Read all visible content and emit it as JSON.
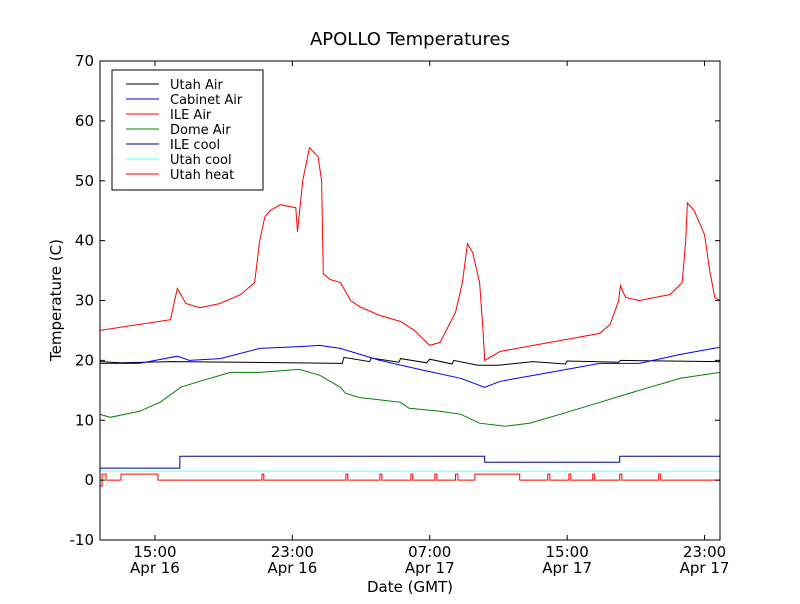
{
  "chart_data": {
    "type": "line",
    "title": "APOLLO Temperatures",
    "xlabel": "Date (GMT)",
    "ylabel": "Temperature (C)",
    "x_units": "hours since Apr 16 00:00 GMT",
    "xlim": [
      11.8,
      47.9
    ],
    "ylim": [
      -10,
      70
    ],
    "yticks": [
      -10,
      0,
      10,
      20,
      30,
      40,
      50,
      60,
      70
    ],
    "xticks": [
      {
        "x": 15,
        "time": "15:00",
        "date": "Apr 16"
      },
      {
        "x": 23,
        "time": "23:00",
        "date": "Apr 16"
      },
      {
        "x": 31,
        "time": "07:00",
        "date": "Apr 17"
      },
      {
        "x": 39,
        "time": "15:00",
        "date": "Apr 17"
      },
      {
        "x": 47,
        "time": "23:00",
        "date": "Apr 17"
      }
    ],
    "grid": false,
    "legend_position": "top-left",
    "series": [
      {
        "name": "Utah Air",
        "color": "#000000",
        "points": [
          [
            11.8,
            19.8
          ],
          [
            13,
            19.6
          ],
          [
            16,
            19.8
          ],
          [
            20,
            19.7
          ],
          [
            25.9,
            19.5
          ],
          [
            26,
            20.5
          ],
          [
            27.5,
            19.8
          ],
          [
            27.6,
            20.4
          ],
          [
            29.2,
            19.7
          ],
          [
            29.3,
            20.3
          ],
          [
            30.8,
            19.6
          ],
          [
            31,
            20.2
          ],
          [
            32.3,
            19.4
          ],
          [
            32.4,
            20
          ],
          [
            33.8,
            19.2
          ],
          [
            35,
            19.2
          ],
          [
            37,
            19.8
          ],
          [
            38.9,
            19.4
          ],
          [
            39,
            19.9
          ],
          [
            42,
            19.7
          ],
          [
            42.1,
            20
          ],
          [
            47.9,
            19.8
          ]
        ]
      },
      {
        "name": "Cabinet Air",
        "color": "#0000ff",
        "points": [
          [
            11.8,
            19.5
          ],
          [
            14.1,
            19.5
          ],
          [
            16.3,
            20.7
          ],
          [
            17.0,
            20
          ],
          [
            18.8,
            20.3
          ],
          [
            21.1,
            22
          ],
          [
            23.4,
            22.3
          ],
          [
            24.6,
            22.5
          ],
          [
            25.8,
            22
          ],
          [
            28.1,
            20
          ],
          [
            30.4,
            18.5
          ],
          [
            32.8,
            17
          ],
          [
            34.2,
            15.5
          ],
          [
            35.1,
            16.5
          ],
          [
            38.0,
            18
          ],
          [
            40.9,
            19.5
          ],
          [
            43.2,
            19.5
          ],
          [
            45.6,
            21
          ],
          [
            47.9,
            22.2
          ]
        ]
      },
      {
        "name": "ILE Air",
        "color": "#ff0000",
        "points": [
          [
            11.8,
            25
          ],
          [
            15.9,
            26.8
          ],
          [
            16.3,
            32
          ],
          [
            16.8,
            29.5
          ],
          [
            17.6,
            28.8
          ],
          [
            18.8,
            29.5
          ],
          [
            20.0,
            31
          ],
          [
            20.8,
            33
          ],
          [
            21.1,
            40
          ],
          [
            21.4,
            44
          ],
          [
            21.7,
            45
          ],
          [
            22.3,
            46
          ],
          [
            23.2,
            45.5
          ],
          [
            23.3,
            41.5
          ],
          [
            23.6,
            50
          ],
          [
            24.0,
            55.5
          ],
          [
            24.5,
            54
          ],
          [
            24.7,
            50
          ],
          [
            24.8,
            34.5
          ],
          [
            25.2,
            33.5
          ],
          [
            25.8,
            33
          ],
          [
            26.4,
            30
          ],
          [
            26.9,
            29
          ],
          [
            28.1,
            27.5
          ],
          [
            29.3,
            26.5
          ],
          [
            30.1,
            25
          ],
          [
            31.0,
            22.5
          ],
          [
            31.6,
            23
          ],
          [
            32.5,
            28
          ],
          [
            32.9,
            33
          ],
          [
            33.2,
            39.5
          ],
          [
            33.5,
            38
          ],
          [
            33.9,
            33
          ],
          [
            34.1,
            25
          ],
          [
            34.2,
            20
          ],
          [
            35.1,
            21.5
          ],
          [
            38.0,
            23
          ],
          [
            40.9,
            24.5
          ],
          [
            41.5,
            26
          ],
          [
            42.0,
            30
          ],
          [
            42.1,
            32.5
          ],
          [
            42.4,
            30.5
          ],
          [
            43.2,
            30
          ],
          [
            45.0,
            31
          ],
          [
            45.7,
            33
          ],
          [
            45.9,
            40
          ],
          [
            46.0,
            46.3
          ],
          [
            46.4,
            45
          ],
          [
            46.7,
            43
          ],
          [
            47.0,
            41
          ],
          [
            47.3,
            35
          ],
          [
            47.6,
            30.5
          ],
          [
            47.9,
            30
          ]
        ]
      },
      {
        "name": "Dome Air",
        "color": "#008000",
        "points": [
          [
            11.8,
            11
          ],
          [
            12.4,
            10.5
          ],
          [
            14.1,
            11.5
          ],
          [
            15.3,
            13
          ],
          [
            16.5,
            15.5
          ],
          [
            17.6,
            16.5
          ],
          [
            19.4,
            18
          ],
          [
            21.1,
            18
          ],
          [
            23.4,
            18.5
          ],
          [
            24.6,
            17.5
          ],
          [
            25.8,
            15.5
          ],
          [
            26.1,
            14.5
          ],
          [
            26.9,
            13.8
          ],
          [
            29.3,
            13
          ],
          [
            29.8,
            12
          ],
          [
            31.6,
            11.5
          ],
          [
            32.8,
            11
          ],
          [
            33.9,
            9.5
          ],
          [
            35.4,
            9
          ],
          [
            36.8,
            9.5
          ],
          [
            38.6,
            11
          ],
          [
            40.9,
            13
          ],
          [
            43.2,
            15
          ],
          [
            45.6,
            17
          ],
          [
            47.9,
            18
          ]
        ]
      },
      {
        "name": "ILE cool",
        "color": "#000080",
        "points": [
          [
            11.8,
            2
          ],
          [
            16.45,
            2
          ],
          [
            16.45,
            4
          ],
          [
            34.2,
            4
          ],
          [
            34.2,
            3
          ],
          [
            42.06,
            3
          ],
          [
            42.06,
            4
          ],
          [
            47.9,
            4
          ]
        ]
      },
      {
        "name": "Utah cool",
        "color": "#00ffff",
        "points": [
          [
            11.8,
            1.5
          ],
          [
            47.9,
            1.5
          ]
        ]
      },
      {
        "name": "Utah heat",
        "color": "#ff0000",
        "points": [
          [
            11.8,
            -1
          ],
          [
            11.92,
            -1
          ],
          [
            11.92,
            1
          ],
          [
            12.15,
            1
          ],
          [
            12.15,
            0
          ],
          [
            13.02,
            0
          ],
          [
            13.02,
            1
          ],
          [
            15.18,
            1
          ],
          [
            15.18,
            0
          ],
          [
            21.23,
            0
          ],
          [
            21.23,
            1
          ],
          [
            21.34,
            1
          ],
          [
            21.34,
            0
          ],
          [
            26.12,
            0
          ],
          [
            26.12,
            1
          ],
          [
            26.23,
            1
          ],
          [
            26.23,
            0
          ],
          [
            28.1,
            0
          ],
          [
            28.1,
            1
          ],
          [
            28.21,
            1
          ],
          [
            28.21,
            0
          ],
          [
            29.9,
            0
          ],
          [
            29.9,
            1
          ],
          [
            30.01,
            1
          ],
          [
            30.01,
            0
          ],
          [
            31.3,
            0
          ],
          [
            31.3,
            1
          ],
          [
            31.41,
            1
          ],
          [
            31.41,
            0
          ],
          [
            32.5,
            0
          ],
          [
            32.5,
            1
          ],
          [
            32.64,
            1
          ],
          [
            32.64,
            0
          ],
          [
            33.63,
            0
          ],
          [
            33.63,
            1
          ],
          [
            36.24,
            1
          ],
          [
            36.24,
            0
          ],
          [
            37.87,
            0
          ],
          [
            37.87,
            1
          ],
          [
            37.99,
            1
          ],
          [
            37.99,
            0
          ],
          [
            39.1,
            0
          ],
          [
            39.1,
            1
          ],
          [
            39.21,
            1
          ],
          [
            39.21,
            0
          ],
          [
            40.49,
            0
          ],
          [
            40.49,
            1
          ],
          [
            40.6,
            1
          ],
          [
            40.6,
            0
          ],
          [
            42.06,
            0
          ],
          [
            42.06,
            1
          ],
          [
            42.18,
            1
          ],
          [
            42.18,
            0
          ],
          [
            44.33,
            0
          ],
          [
            44.33,
            1
          ],
          [
            44.45,
            1
          ],
          [
            44.45,
            0
          ],
          [
            47.9,
            0
          ]
        ]
      }
    ]
  }
}
